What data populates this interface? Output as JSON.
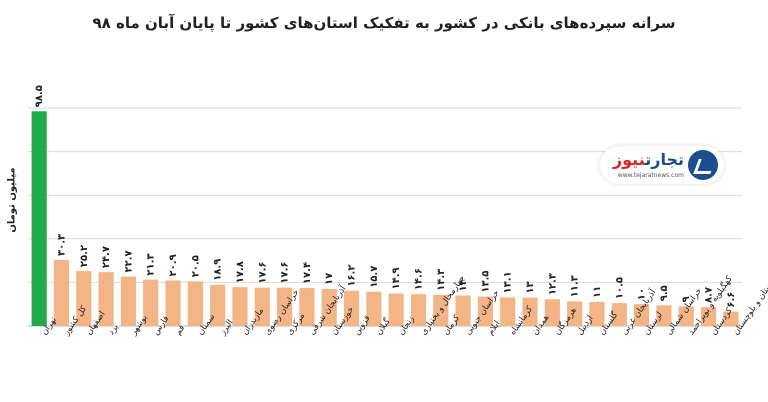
{
  "chart_data": {
    "type": "bar",
    "title": "سرانه سپرده‌های بانکی در کشور به تفکیک استان‌های کشور تا پایان آبان ماه ۹۸",
    "ylabel": "میلیون تومان",
    "xlabel": "",
    "ylim": [
      0,
      100
    ],
    "grid": true,
    "colors": {
      "highlight": "#22a94b",
      "default": "#f3b486",
      "grid": "#d9d9d9"
    },
    "categories": [
      "تهران",
      "کل کشور",
      "اصفهان",
      "یزد",
      "بوشهر",
      "فارس",
      "قم",
      "سمنان",
      "البرز",
      "مازندران",
      "خراسان رضوی",
      "مرکزی",
      "آذربایجان شرقی",
      "خوزستان",
      "قزوین",
      "گیلان",
      "زنجان",
      "چهارمحال و بختیاری",
      "کرمان",
      "خراسان جنوبی",
      "ایلام",
      "کرمانشاه",
      "همدان",
      "هرمزگان",
      "اردبیل",
      "گلستان",
      "آذربایجان غربی",
      "لرستان",
      "خراسان شمالی",
      "کهگیلویه و بویراحمد",
      "کردستان",
      "سیستان و بلوچستان"
    ],
    "values": [
      98.5,
      30.3,
      25.2,
      24.7,
      22.7,
      21.3,
      20.9,
      20.5,
      18.9,
      17.8,
      17.6,
      17.6,
      17.4,
      17,
      16.2,
      15.7,
      14.9,
      14.6,
      14.3,
      14,
      13.5,
      13.1,
      13,
      12.3,
      11.3,
      11,
      10.5,
      10,
      9.5,
      9,
      8.7,
      6.6
    ],
    "value_labels": [
      "۹۸.۵",
      "۳۰.۳",
      "۲۵.۲",
      "۲۴.۷",
      "۲۲.۷",
      "۲۱.۳",
      "۲۰.۹",
      "۲۰.۵",
      "۱۸.۹",
      "۱۷.۸",
      "۱۷.۶",
      "۱۷.۶",
      "۱۷.۴",
      "۱۷",
      "۱۶.۲",
      "۱۵.۷",
      "۱۴.۹",
      "۱۴.۶",
      "۱۴.۳",
      "۱۴",
      "۱۳.۵",
      "۱۳.۱",
      "۱۳",
      "۱۲.۳",
      "۱۱.۳",
      "۱۱",
      "۱۰.۵",
      "۱۰",
      "۹.۵",
      "۹",
      "۸.۷",
      "۶.۶"
    ]
  },
  "logo": {
    "name_part1": "تجارت",
    "name_part2": "نیوز",
    "url": "www.tejaratnews.com",
    "icon": "tejarat-news-logo-icon"
  }
}
